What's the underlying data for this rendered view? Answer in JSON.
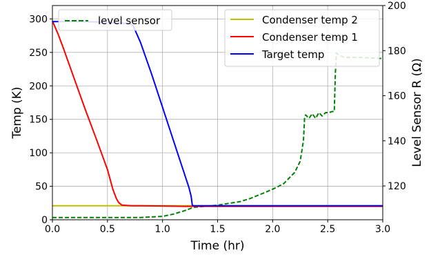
{
  "chart_data": {
    "type": "line",
    "xlabel": "Time (hr)",
    "ylabel_left": "Temp (K)",
    "ylabel_right": "Level Sensor R (Ω)",
    "xlim": [
      0,
      3.0
    ],
    "ylim_left": [
      0,
      320
    ],
    "ylim_right": [
      105,
      200
    ],
    "x_ticks": [
      "0.0",
      "0.5",
      "1.0",
      "1.5",
      "2.0",
      "2.5",
      "3.0"
    ],
    "y_ticks_left": [
      "0",
      "50",
      "100",
      "150",
      "200",
      "250",
      "300"
    ],
    "y_ticks_right": [
      "120",
      "140",
      "160",
      "180",
      "200"
    ],
    "grid": true,
    "legend_left": {
      "placement": "top-left",
      "entries": [
        "level sensor"
      ]
    },
    "legend_right": {
      "placement": "top-right",
      "entries": [
        "Condenser temp 2",
        "Condenser temp 1",
        "Target temp"
      ]
    },
    "series": [
      {
        "name": "Condenser temp 2",
        "axis": "left",
        "color": "#bfbf00",
        "style": "solid",
        "x": [
          0.0,
          1.3,
          3.0
        ],
        "y": [
          21,
          21,
          21
        ]
      },
      {
        "name": "Condenser temp 1",
        "axis": "left",
        "color": "#ff0000",
        "style": "solid",
        "x": [
          0.0,
          0.05,
          0.1,
          0.2,
          0.3,
          0.4,
          0.5,
          0.55,
          0.58,
          0.6,
          0.63,
          0.67,
          0.72,
          0.8,
          1.0,
          1.2,
          1.5,
          2.0,
          2.5,
          3.0
        ],
        "y": [
          297,
          278,
          256,
          210,
          164,
          120,
          75,
          45,
          32,
          26,
          22,
          21.5,
          21,
          21,
          20.5,
          20,
          20,
          20,
          20,
          20
        ]
      },
      {
        "name": "Target temp",
        "axis": "left",
        "color": "#0000ff",
        "style": "solid",
        "x": [
          0.0,
          0.02,
          0.2,
          0.4,
          0.6,
          0.7,
          0.73,
          0.8,
          0.9,
          1.0,
          1.1,
          1.15,
          1.2,
          1.24,
          1.26,
          1.27,
          1.28,
          1.5,
          2.0,
          2.5,
          3.0
        ],
        "y": [
          296,
          296,
          296,
          295.5,
          294,
          293,
          291,
          265,
          218,
          168,
          118,
          93,
          68,
          48,
          35,
          22,
          21,
          21,
          21,
          21,
          21
        ]
      },
      {
        "name": "level sensor",
        "axis": "right",
        "color": "#008000",
        "style": "dashed",
        "x": [
          0.0,
          0.5,
          0.8,
          1.0,
          1.1,
          1.2,
          1.28,
          1.5,
          1.7,
          1.8,
          1.9,
          2.0,
          2.1,
          2.2,
          2.25,
          2.28,
          2.29,
          2.3,
          2.33,
          2.36,
          2.39,
          2.42,
          2.45,
          2.48,
          2.51,
          2.54,
          2.56,
          2.57,
          2.58,
          2.6,
          2.65,
          2.8,
          3.0
        ],
        "y": [
          106,
          106,
          106,
          106.5,
          107.5,
          109,
          110.5,
          111.5,
          113,
          114.5,
          116.5,
          118.5,
          121,
          126,
          131,
          140,
          150,
          151.5,
          150,
          152,
          150,
          152.5,
          151,
          152.5,
          152.5,
          153,
          153,
          170,
          179,
          178,
          177,
          177,
          176.5
        ]
      }
    ]
  }
}
